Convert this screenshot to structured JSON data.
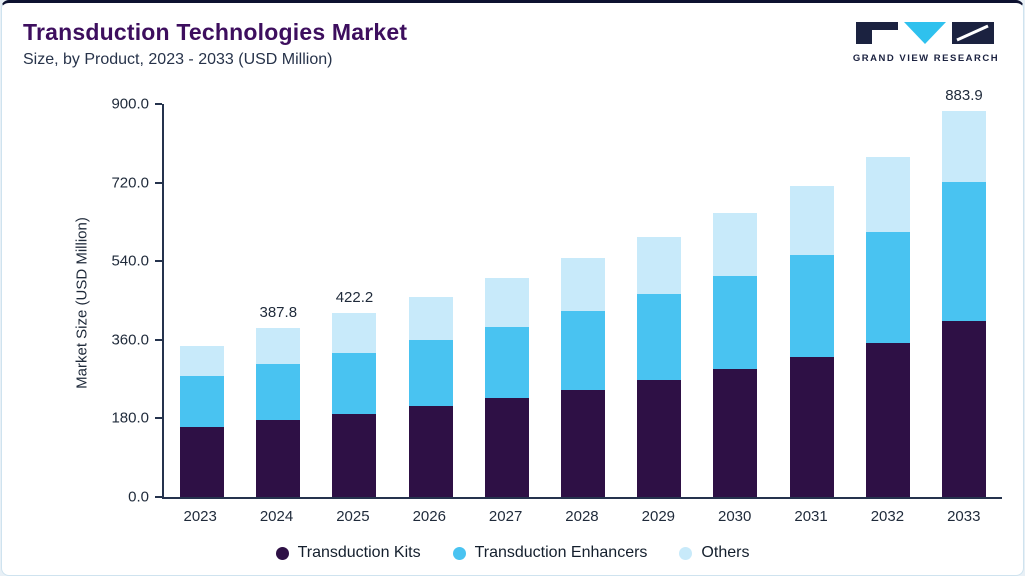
{
  "header": {
    "title": "Transduction Technologies Market",
    "subtitle": "Size, by Product, 2023 - 2033 (USD Million)",
    "logo_text": "GRAND VIEW RESEARCH"
  },
  "colors": {
    "accent_top_border": "#0d1230",
    "title": "#3d0e5e",
    "axis": "#25334d",
    "kits": "#2e1045",
    "enhancers": "#49c3f1",
    "others": "#c8eafa"
  },
  "chart_data": {
    "type": "bar",
    "stacked": true,
    "title": "Transduction Technologies Market Size, by Product, 2023 - 2033 (USD Million)",
    "xlabel": "",
    "ylabel": "Market Size (USD Million)",
    "ylim": [
      0,
      900
    ],
    "grid": false,
    "legend_position": "bottom",
    "yticks": [
      0,
      180,
      360,
      540,
      720,
      900
    ],
    "ytick_labels": [
      "0.0",
      "180.0",
      "360.0",
      "540.0",
      "720.0",
      "900.0"
    ],
    "categories": [
      "2023",
      "2024",
      "2025",
      "2026",
      "2027",
      "2028",
      "2029",
      "2030",
      "2031",
      "2032",
      "2033"
    ],
    "series": [
      {
        "name": "Transduction Kits",
        "color": "#2e1045",
        "values": [
          160.0,
          176.0,
          191.0,
          208.0,
          226.0,
          246.0,
          268.0,
          293.0,
          320.0,
          352.0,
          402.0
        ]
      },
      {
        "name": "Transduction Enhancers",
        "color": "#49c3f1",
        "values": [
          118.0,
          128.0,
          139.2,
          151.0,
          164.5,
          179.0,
          196.0,
          214.0,
          234.0,
          254.0,
          318.9
        ]
      },
      {
        "name": "Others",
        "color": "#c8eafa",
        "values": [
          67.2,
          83.8,
          92.0,
          100.0,
          110.5,
          121.3,
          132.2,
          144.0,
          157.4,
          172.0,
          163.0
        ]
      }
    ],
    "totals": [
      345.2,
      387.8,
      422.2,
      459.0,
      501.0,
      546.3,
      596.2,
      651.0,
      711.4,
      778.0,
      883.9
    ],
    "data_labels": {
      "2024": "387.8",
      "2025": "422.2",
      "2033": "883.9"
    }
  }
}
